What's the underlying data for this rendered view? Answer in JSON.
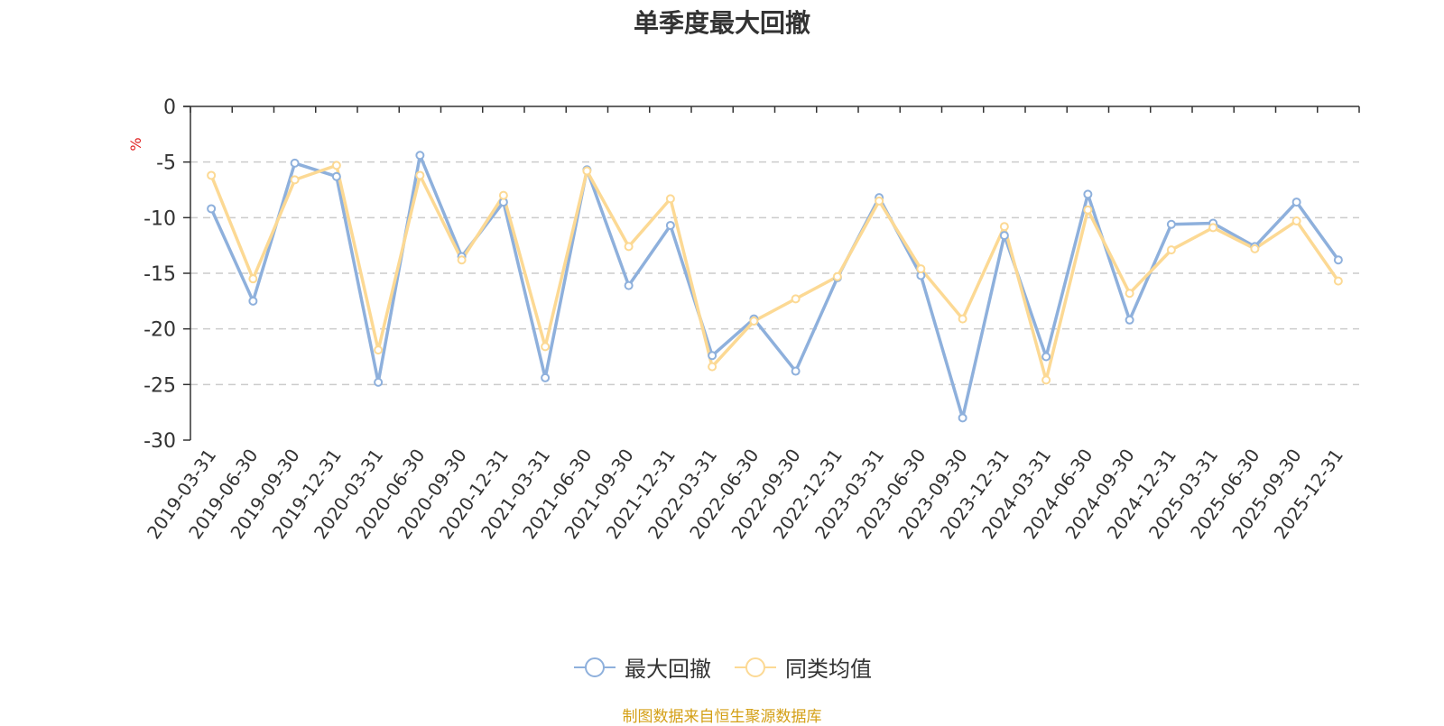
{
  "chart_data": {
    "type": "line",
    "title": "单季度最大回撤",
    "ylabel": "%",
    "ylim": [
      -30,
      0
    ],
    "yticks": [
      0,
      -5,
      -10,
      -15,
      -20,
      -25,
      -30
    ],
    "grid": true,
    "legend_position": "bottom",
    "categories": [
      "2019-03-31",
      "2019-06-30",
      "2019-09-30",
      "2019-12-31",
      "2020-03-31",
      "2020-06-30",
      "2020-09-30",
      "2020-12-31",
      "2021-03-31",
      "2021-06-30",
      "2021-09-30",
      "2021-12-31",
      "2022-03-31",
      "2022-06-30",
      "2022-09-30",
      "2022-12-31",
      "2023-03-31",
      "2023-06-30",
      "2023-09-30",
      "2023-12-31",
      "2024-03-31",
      "2024-06-30",
      "2024-09-30",
      "2024-12-31",
      "2025-03-31",
      "2025-06-30",
      "2025-09-30",
      "2025-12-31"
    ],
    "series": [
      {
        "name": "最大回撤",
        "color": "#8eb0dc",
        "values": [
          -9.2,
          -17.5,
          -5.1,
          -6.3,
          -24.8,
          -4.4,
          -13.5,
          -8.6,
          -24.4,
          -5.7,
          -16.1,
          -10.7,
          -22.4,
          -19.1,
          -23.8,
          -15.4,
          -8.2,
          -15.2,
          -28.0,
          -11.6,
          -22.5,
          -7.9,
          -19.2,
          -10.6,
          -10.5,
          -12.6,
          -8.6,
          -13.8
        ]
      },
      {
        "name": "同类均值",
        "color": "#fcd994",
        "values": [
          -6.2,
          -15.5,
          -6.6,
          -5.3,
          -21.9,
          -6.2,
          -13.8,
          -8.0,
          -21.6,
          -5.8,
          -12.6,
          -8.3,
          -23.4,
          -19.3,
          -17.3,
          -15.3,
          -8.5,
          -14.6,
          -19.1,
          -10.8,
          -24.6,
          -9.3,
          -16.8,
          -12.9,
          -10.9,
          -12.8,
          -10.3,
          -15.7
        ]
      }
    ]
  },
  "source_text": "制图数据来自恒生聚源数据库"
}
